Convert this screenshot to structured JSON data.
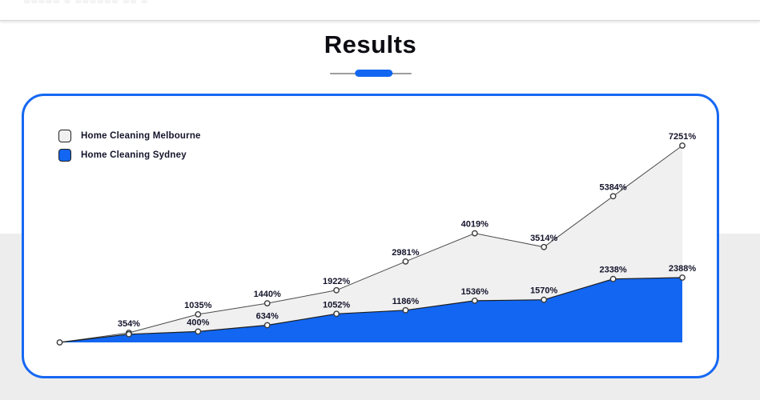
{
  "page": {
    "header": {
      "clipped_text": "░░░░░ ░ ░░░░░░ ░░ ░"
    },
    "title": "Results"
  },
  "colors": {
    "accent_blue": "#1266f1",
    "card_border": "#1668f2",
    "melbourne_fill": "#f0f0f1",
    "melbourne_line": "#4a4a4a",
    "sydney_fill": "#1266f1",
    "sydney_line": "#1d1d1d",
    "label_text": "#14142b",
    "gray_band": "#ededed",
    "marker_fill": "#ffffff",
    "marker_stroke": "#3a3a3a"
  },
  "legend": [
    {
      "label": "Home Cleaning Melbourne",
      "swatch_color": "#f0f0f1"
    },
    {
      "label": "Home Cleaning Sydney",
      "swatch_color": "#1266f1"
    }
  ],
  "chart_data": {
    "type": "area",
    "title": "Results",
    "xlabel": "",
    "ylabel": "",
    "unit": "%",
    "x": [
      0,
      1,
      2,
      3,
      4,
      5,
      6,
      7,
      8,
      9
    ],
    "x_tick_labels": [],
    "ylim": [
      0,
      7600
    ],
    "grid": false,
    "legend_position": "top-left",
    "series": [
      {
        "name": "Home Cleaning Melbourne",
        "values": [
          0,
          354,
          1035,
          1440,
          1922,
          2981,
          4019,
          3514,
          5384,
          7251
        ],
        "point_labels": [
          "",
          "354%",
          "1035%",
          "1440%",
          "1922%",
          "2981%",
          "4019%",
          "3514%",
          "5384%",
          "7251%"
        ]
      },
      {
        "name": "Home Cleaning Sydney",
        "values": [
          0,
          300,
          400,
          634,
          1052,
          1186,
          1536,
          1570,
          2338,
          2388
        ],
        "point_labels": [
          "",
          "",
          "400%",
          "634%",
          "1052%",
          "1186%",
          "1536%",
          "1570%",
          "2338%",
          "2388%"
        ]
      }
    ]
  }
}
